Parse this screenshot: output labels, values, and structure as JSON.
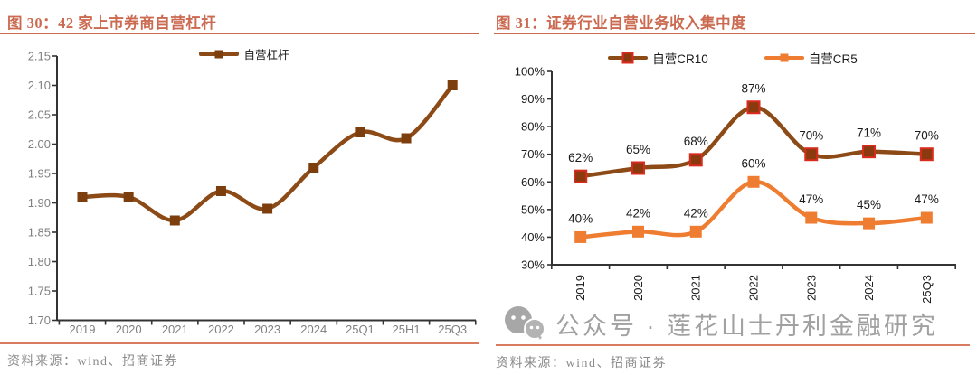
{
  "page": {
    "background": "#ffffff"
  },
  "colors": {
    "accent_title": "#CB6A50",
    "separator": "#D97B60",
    "axis_line": "#333333",
    "source_text": "#8A8A8A",
    "watermark_gray": "#9C9C9C",
    "brown_line": "#8C4A17",
    "brown_marker": "#7D3E0E",
    "cr10_marker_fill": "#8B3A10",
    "cr10_marker_stroke": "#D92B1E",
    "orange_line": "#EE7D31"
  },
  "figures": [
    {
      "title": "图 30：42 家上市券商自营杠杆",
      "source": "资料来源：wind、招商证券",
      "chart_data": {
        "type": "line",
        "title": "42 家上市券商自营杠杆",
        "categories": [
          "2019",
          "2020",
          "2021",
          "2022",
          "2023",
          "2024",
          "25Q1",
          "25H1",
          "25Q3"
        ],
        "series": [
          {
            "name": "自营杠杆",
            "color": "#8C4A17",
            "marker_fill": "#7D3E0E",
            "values": [
              1.91,
              1.91,
              1.87,
              1.92,
              1.89,
              1.96,
              2.02,
              2.01,
              2.1
            ]
          }
        ],
        "ylim": [
          1.7,
          2.15
        ],
        "ytick_step": 0.05,
        "ytick_format": "2dp",
        "grid": "off",
        "legend_position": "top",
        "axis_label_color": "#7F7F7F"
      }
    },
    {
      "title": "图 31：证券行业自营业务收入集中度",
      "source": "资料来源：wind、招商证券",
      "chart_data": {
        "type": "line",
        "title": "证券行业自营业务收入集中度",
        "categories": [
          "2019",
          "2020",
          "2021",
          "2022",
          "2023",
          "2024",
          "25Q3"
        ],
        "series": [
          {
            "name": "自营CR10",
            "color": "#8C4A17",
            "marker_fill": "#8B3A10",
            "marker_stroke": "#D92B1E",
            "values": [
              62,
              65,
              68,
              87,
              70,
              71,
              70
            ],
            "labels": [
              "62%",
              "65%",
              "68%",
              "87%",
              "70%",
              "71%",
              "70%"
            ]
          },
          {
            "name": "自营CR5",
            "color": "#EE7D31",
            "marker_fill": "#EE7D31",
            "values": [
              40,
              42,
              42,
              60,
              47,
              45,
              47
            ],
            "labels": [
              "40%",
              "42%",
              "42%",
              "60%",
              "47%",
              "45%",
              "47%"
            ]
          }
        ],
        "ylim": [
          30,
          100
        ],
        "ytick_step": 10,
        "ytick_format": "percent",
        "grid": "off",
        "legend_position": "top",
        "x_label_rotation": -90,
        "axis_label_color": "#1A1A1A",
        "data_label_color": "#1A1A1A"
      }
    }
  ],
  "watermark": {
    "icon": "wechat-icon",
    "text": "公众号 · 莲花山士丹利金融研究"
  }
}
